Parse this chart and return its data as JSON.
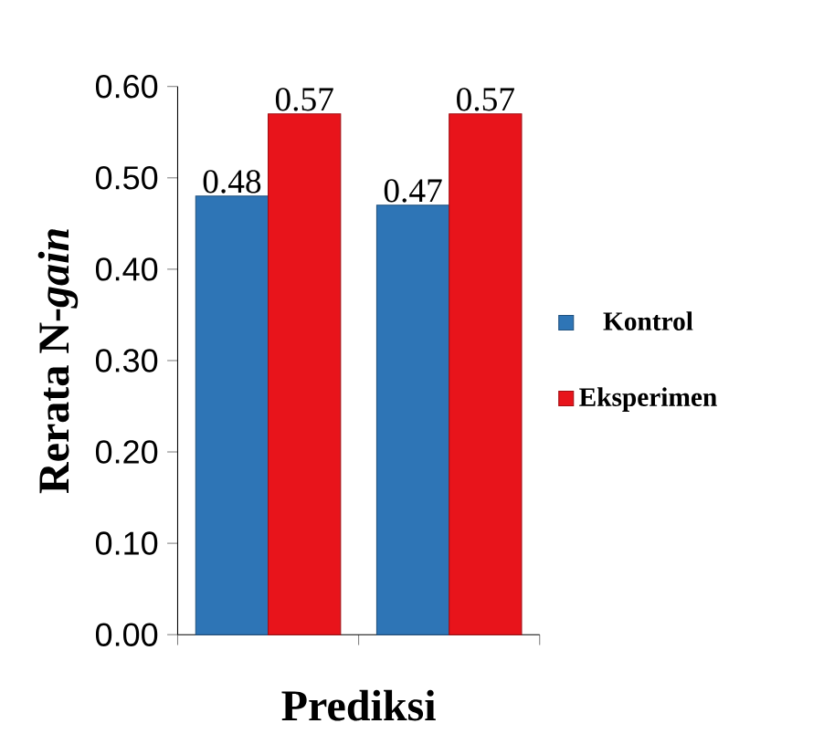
{
  "chart_data": {
    "type": "bar",
    "xlabel": "Prediksi",
    "ylabel": "Rerata N-*gain*",
    "categories": [
      null,
      null
    ],
    "series": [
      {
        "name": "Kontrol",
        "color": "#2e75b6",
        "values": [
          0.48,
          0.47
        ],
        "value_labels": [
          "0.48",
          "0.47"
        ]
      },
      {
        "name": "Eksperimen",
        "color": "#e8141b",
        "values": [
          0.57,
          0.57
        ],
        "value_labels": [
          "0.57",
          "0.57"
        ]
      }
    ],
    "ylim": [
      0,
      0.6
    ],
    "yticks": [
      {
        "value": 0,
        "label": "0.00"
      },
      {
        "value": 0.1,
        "label": "0.10"
      },
      {
        "value": 0.2,
        "label": "0.20"
      },
      {
        "value": 0.3,
        "label": "0.30"
      },
      {
        "value": 0.4,
        "label": "0.40"
      },
      {
        "value": 0.5,
        "label": "0.50"
      },
      {
        "value": 0.6,
        "label": "0.60"
      }
    ],
    "legend": "right",
    "grid": false
  }
}
